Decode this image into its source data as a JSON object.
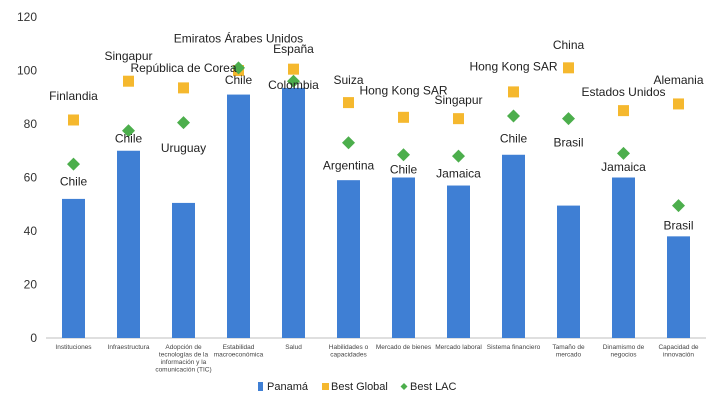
{
  "chart_data": {
    "type": "bar",
    "categories": [
      [
        "Instituciones"
      ],
      [
        "Infraestructura"
      ],
      [
        "Adopción de",
        "tecnologías de la",
        "información y la",
        "comunicación (TIC)"
      ],
      [
        "Estabilidad",
        "macroeconómica"
      ],
      [
        "Salud"
      ],
      [
        "Habilidades o",
        "capacidades"
      ],
      [
        "Mercado de bienes"
      ],
      [
        "Mercado laboral"
      ],
      [
        "Sistema financiero"
      ],
      [
        "Tamaño de",
        "mercado"
      ],
      [
        "Dinamismo de",
        "negocios"
      ],
      [
        "Capacidad de",
        "innovación"
      ]
    ],
    "series": [
      {
        "name": "Panamá",
        "color": "#3f7fd4",
        "marker": "bar",
        "values": [
          52,
          70,
          50.5,
          91,
          93.5,
          59,
          60,
          57,
          68.5,
          49.5,
          60,
          38
        ]
      },
      {
        "name": "Best Global",
        "color": "#f5b82e",
        "marker": "square",
        "values": [
          81.5,
          96,
          93.5,
          100,
          100.5,
          88,
          82.5,
          82,
          92,
          101,
          85,
          87.5
        ]
      },
      {
        "name": "Best LAC",
        "color": "#4cae4c",
        "marker": "diamond",
        "values": [
          65,
          77.5,
          80.5,
          101,
          96,
          73,
          68.5,
          68,
          83,
          82,
          69,
          49.5
        ]
      }
    ],
    "annotations": [
      {
        "text": "Finlandia",
        "cat": 0,
        "y": 89
      },
      {
        "text": "Chile",
        "cat": 0,
        "y": 57
      },
      {
        "text": "Singapur",
        "cat": 1,
        "y": 104
      },
      {
        "text": "Chile",
        "cat": 1,
        "y": 73
      },
      {
        "text": "República de Corea",
        "cat": 2,
        "y": 99.5
      },
      {
        "text": "Uruguay",
        "cat": 2,
        "y": 69.5
      },
      {
        "text": "Emiratos Árabes Unidos",
        "cat": 3,
        "y": 110.5
      },
      {
        "text": "Chile",
        "cat": 3,
        "y": 95
      },
      {
        "text": "España",
        "cat": 4,
        "y": 106.5
      },
      {
        "text": "Colombia",
        "cat": 4,
        "y": 93
      },
      {
        "text": "Suiza",
        "cat": 5,
        "y": 95
      },
      {
        "text": "Argentina",
        "cat": 5,
        "y": 63
      },
      {
        "text": "Hong Kong SAR",
        "cat": 6,
        "y": 91
      },
      {
        "text": "Chile",
        "cat": 6,
        "y": 61.5
      },
      {
        "text": "Singapur",
        "cat": 7,
        "y": 87.5
      },
      {
        "text": "Jamaica",
        "cat": 7,
        "y": 60
      },
      {
        "text": "Hong Kong SAR",
        "cat": 8,
        "y": 100
      },
      {
        "text": "Chile",
        "cat": 8,
        "y": 73
      },
      {
        "text": "China",
        "cat": 9,
        "y": 108
      },
      {
        "text": "Brasil",
        "cat": 9,
        "y": 71.5
      },
      {
        "text": "Estados Unidos",
        "cat": 10,
        "y": 90.5
      },
      {
        "text": "Jamaica",
        "cat": 10,
        "y": 62.5
      },
      {
        "text": "Alemania",
        "cat": 11,
        "y": 95
      },
      {
        "text": "Brasil",
        "cat": 11,
        "y": 40.5
      }
    ],
    "yticks": [
      0,
      20,
      40,
      60,
      80,
      100,
      120
    ],
    "ylim": [
      0,
      120
    ],
    "grid": false,
    "legend_position": "bottom",
    "xlabel": "",
    "ylabel": ""
  }
}
